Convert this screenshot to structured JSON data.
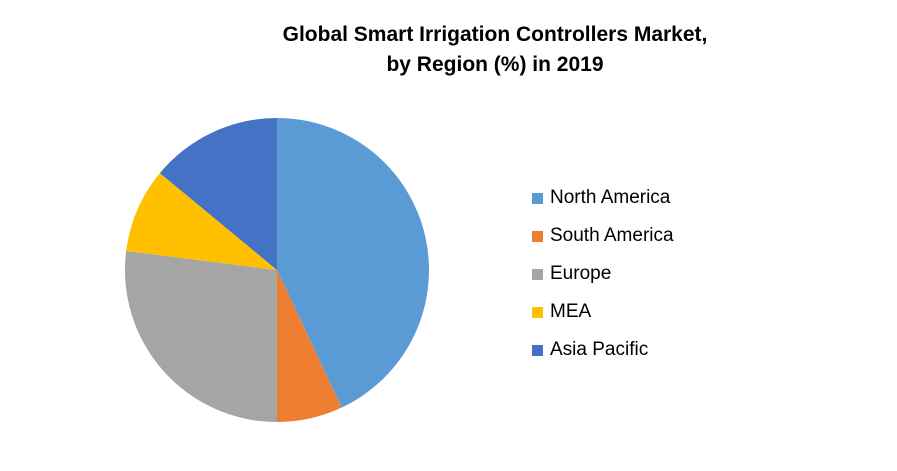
{
  "chart_data": {
    "type": "pie",
    "title_line1": "Global Smart Irrigation Controllers Market,",
    "title_line2": "by Region (%) in 2019",
    "series": [
      {
        "name": "North America",
        "value": 43,
        "color": "#5B9BD5"
      },
      {
        "name": "South America",
        "value": 7,
        "color": "#ED7D31"
      },
      {
        "name": "Europe",
        "value": 27,
        "color": "#A5A5A5"
      },
      {
        "name": "MEA",
        "value": 9,
        "color": "#FFC000"
      },
      {
        "name": "Asia Pacific",
        "value": 14,
        "color": "#4472C4"
      }
    ],
    "unit": "%",
    "legend_position": "right"
  }
}
